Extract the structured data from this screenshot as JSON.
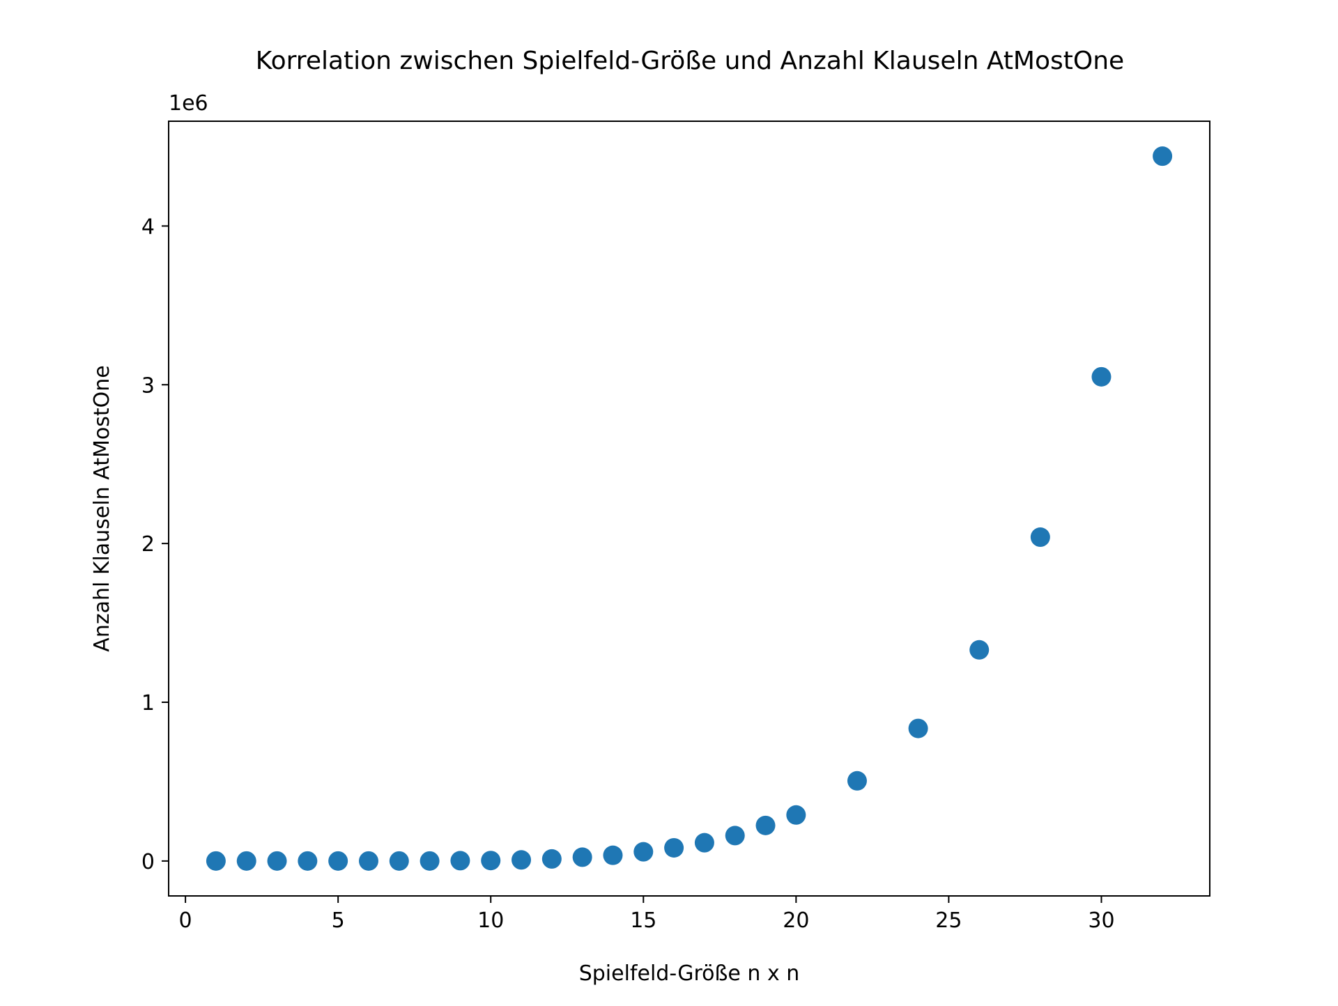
{
  "chart_data": {
    "type": "scatter",
    "title": "Korrelation zwischen Spielfeld-Größe und Anzahl Klauseln AtMostOne",
    "xlabel": "Spielfeld-Größe n x n",
    "ylabel": "Anzahl Klauseln AtMostOne",
    "y_offset_label": "1e6",
    "xlim": [
      -0.55,
      33.55
    ],
    "ylim": [
      -0.22,
      4.66
    ],
    "y_unit_multiplier": 1000000,
    "x_ticks": [
      0,
      5,
      10,
      15,
      20,
      25,
      30
    ],
    "x_tick_labels": [
      "0",
      "5",
      "10",
      "15",
      "20",
      "25",
      "30"
    ],
    "y_ticks": [
      0,
      1,
      2,
      3,
      4
    ],
    "y_tick_labels": [
      "0",
      "1",
      "2",
      "3",
      "4"
    ],
    "grid": false,
    "legend": "none",
    "marker_color": "#1f77b4",
    "x": [
      1,
      2,
      3,
      4,
      5,
      6,
      7,
      8,
      9,
      10,
      11,
      12,
      13,
      14,
      15,
      16,
      17,
      18,
      19,
      20,
      22,
      24,
      26,
      28,
      30,
      32
    ],
    "y": [
      0.0,
      0.0,
      0.0,
      0.0,
      0.0,
      0.0,
      0.0,
      0.0,
      0.002,
      0.003,
      0.007,
      0.013,
      0.024,
      0.036,
      0.058,
      0.083,
      0.115,
      0.16,
      0.224,
      0.29,
      0.505,
      0.835,
      1.33,
      2.04,
      3.05,
      4.44
    ]
  }
}
